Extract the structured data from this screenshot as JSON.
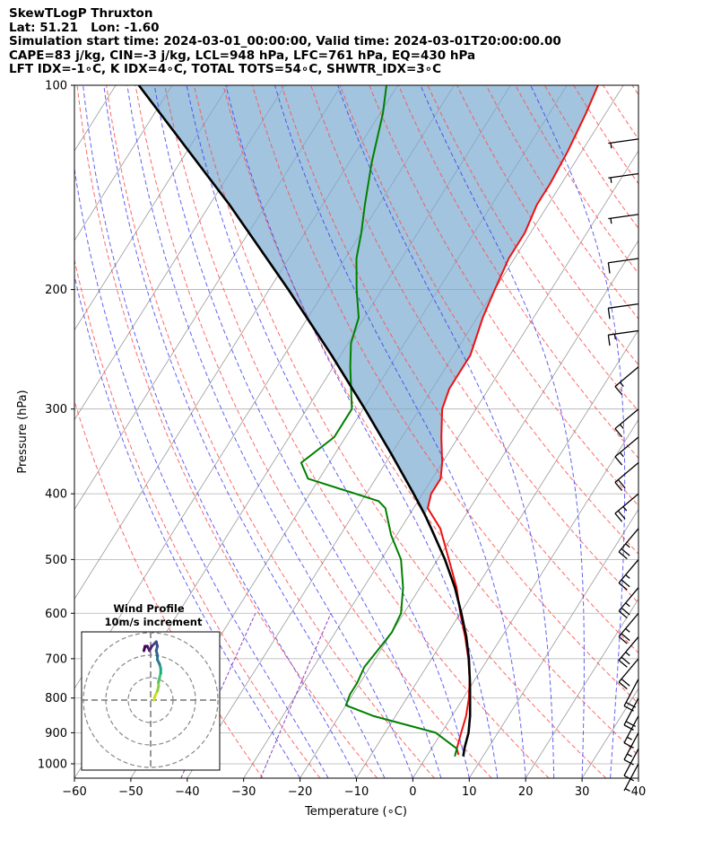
{
  "header": {
    "line1": "SkewTLogP Thruxton",
    "line2": "Lat: 51.21   Lon: -1.60",
    "line3": "Simulation start time: 2024-03-01_00:00:00, Valid time: 2024-03-01T20:00:00.00",
    "line4": "CAPE=83 j/kg, CIN=-3 j/kg, LCL=948 hPa, LFC=761 hPa, EQ=430 hPa",
    "line5": "LFT IDX=-1∘C, K IDX=4∘C, TOTAL TOTS=54∘C, SHWTR_IDX=3∘C"
  },
  "axes": {
    "xlabel": "Temperature (∘C)",
    "ylabel": "Pressure (hPa)"
  },
  "hodograph": {
    "title": "Wind Profile",
    "subtitle": "10m/s increment"
  },
  "colors": {
    "temperature": "#ee1111",
    "dewpoint": "#008000",
    "parcel": "#000000",
    "cape_fill": "#7aabd0",
    "dry_adiabat": "#ff4d4d",
    "moist_adiabat": "#3a3af5",
    "mixing_ratio": "#9040c0",
    "isotherm": "#999999",
    "grid": "#b0b0b0"
  },
  "chart_data": {
    "type": "line",
    "title": "SkewTLogP Thruxton",
    "xlabel": "Temperature (∘C)",
    "ylabel": "Pressure (hPa)",
    "xlim": [
      -60,
      40
    ],
    "ylim": [
      1050,
      100
    ],
    "yscale": "log",
    "x_ticks": [
      -60,
      -50,
      -40,
      -30,
      -20,
      -10,
      0,
      10,
      20,
      30,
      40
    ],
    "y_ticks": [
      1000,
      900,
      800,
      700,
      600,
      500,
      400,
      300,
      200,
      100
    ],
    "series": [
      {
        "name": "Temperature",
        "points": [
          [
            970,
            5.5
          ],
          [
            950,
            4.5
          ],
          [
            900,
            3.5
          ],
          [
            850,
            2.5
          ],
          [
            800,
            1.0
          ],
          [
            750,
            -1.0
          ],
          [
            700,
            -3.5
          ],
          [
            650,
            -6.5
          ],
          [
            600,
            -10.0
          ],
          [
            550,
            -13.5
          ],
          [
            500,
            -18.0
          ],
          [
            450,
            -23.0
          ],
          [
            420,
            -27.5
          ],
          [
            400,
            -28.5
          ],
          [
            380,
            -28.5
          ],
          [
            360,
            -30.0
          ],
          [
            330,
            -33.0
          ],
          [
            300,
            -36.0
          ],
          [
            280,
            -37.0
          ],
          [
            250,
            -37.0
          ],
          [
            220,
            -39.0
          ],
          [
            200,
            -40.0
          ],
          [
            180,
            -41.0
          ],
          [
            165,
            -41.0
          ],
          [
            150,
            -42.0
          ],
          [
            140,
            -42.0
          ],
          [
            125,
            -42.5
          ],
          [
            110,
            -43.5
          ],
          [
            100,
            -44.5
          ]
        ]
      },
      {
        "name": "Dewpoint",
        "points": [
          [
            975,
            5.0
          ],
          [
            950,
            4.5
          ],
          [
            900,
            -1.0
          ],
          [
            850,
            -14.0
          ],
          [
            820,
            -20.0
          ],
          [
            790,
            -20.5
          ],
          [
            760,
            -20.5
          ],
          [
            720,
            -21.0
          ],
          [
            680,
            -20.5
          ],
          [
            640,
            -20.0
          ],
          [
            600,
            -20.5
          ],
          [
            550,
            -23.0
          ],
          [
            500,
            -26.5
          ],
          [
            460,
            -31.0
          ],
          [
            420,
            -35.0
          ],
          [
            410,
            -37.0
          ],
          [
            380,
            -52.0
          ],
          [
            360,
            -55.0
          ],
          [
            330,
            -52.0
          ],
          [
            300,
            -52.0
          ],
          [
            260,
            -57.0
          ],
          [
            240,
            -59.5
          ],
          [
            220,
            -61.0
          ],
          [
            200,
            -64.5
          ],
          [
            180,
            -68.0
          ],
          [
            165,
            -70.0
          ],
          [
            150,
            -72.5
          ],
          [
            130,
            -76.0
          ],
          [
            110,
            -79.5
          ],
          [
            100,
            -82.0
          ]
        ]
      },
      {
        "name": "Parcel",
        "points": [
          [
            975,
            6.5
          ],
          [
            948,
            5.8
          ],
          [
            900,
            4.8
          ],
          [
            850,
            3.2
          ],
          [
            800,
            1.2
          ],
          [
            760,
            -0.5
          ],
          [
            700,
            -3.4
          ],
          [
            650,
            -6.3
          ],
          [
            600,
            -9.8
          ],
          [
            550,
            -13.8
          ],
          [
            500,
            -18.7
          ],
          [
            450,
            -24.6
          ],
          [
            430,
            -27.2
          ],
          [
            400,
            -31.6
          ],
          [
            350,
            -39.9
          ],
          [
            300,
            -49.7
          ],
          [
            250,
            -61.6
          ],
          [
            200,
            -76.6
          ],
          [
            150,
            -96.5
          ],
          [
            100,
            -125.9
          ]
        ]
      }
    ],
    "cape_between": [
      "Parcel",
      "Temperature"
    ],
    "wind_barbs": [
      {
        "p": 1000,
        "spd_kt": 5
      },
      {
        "p": 950,
        "spd_kt": 10
      },
      {
        "p": 900,
        "spd_kt": 15
      },
      {
        "p": 850,
        "spd_kt": 15
      },
      {
        "p": 800,
        "spd_kt": 20
      },
      {
        "p": 750,
        "spd_kt": 20
      },
      {
        "p": 700,
        "spd_kt": 20
      },
      {
        "p": 650,
        "spd_kt": 25
      },
      {
        "p": 600,
        "spd_kt": 25
      },
      {
        "p": 550,
        "spd_kt": 25
      },
      {
        "p": 500,
        "spd_kt": 25
      },
      {
        "p": 450,
        "spd_kt": 25
      },
      {
        "p": 400,
        "spd_kt": 25
      },
      {
        "p": 360,
        "spd_kt": 20
      },
      {
        "p": 330,
        "spd_kt": 15
      },
      {
        "p": 300,
        "spd_kt": 15
      },
      {
        "p": 260,
        "spd_kt": 15
      },
      {
        "p": 230,
        "spd_kt": 15
      },
      {
        "p": 210,
        "spd_kt": 10
      },
      {
        "p": 180,
        "spd_kt": 10
      },
      {
        "p": 155,
        "spd_kt": 5
      },
      {
        "p": 135,
        "spd_kt": 5
      },
      {
        "p": 120,
        "spd_kt": 5
      }
    ],
    "hodograph": {
      "ring_increment_ms": 10,
      "rings": 3,
      "points_uv_ms": [
        [
          1.5,
          0
        ],
        [
          2,
          2
        ],
        [
          3,
          4
        ],
        [
          3.5,
          6
        ],
        [
          3.5,
          8
        ],
        [
          4,
          10
        ],
        [
          4.5,
          12
        ],
        [
          4.5,
          14
        ],
        [
          4,
          16
        ],
        [
          3,
          18
        ],
        [
          3,
          20
        ],
        [
          2.5,
          22
        ],
        [
          3,
          24
        ],
        [
          2.5,
          26
        ],
        [
          0.5,
          24
        ],
        [
          -0.5,
          22
        ],
        [
          -1.5,
          24
        ],
        [
          -2.5,
          24
        ],
        [
          -3,
          22
        ]
      ]
    }
  }
}
